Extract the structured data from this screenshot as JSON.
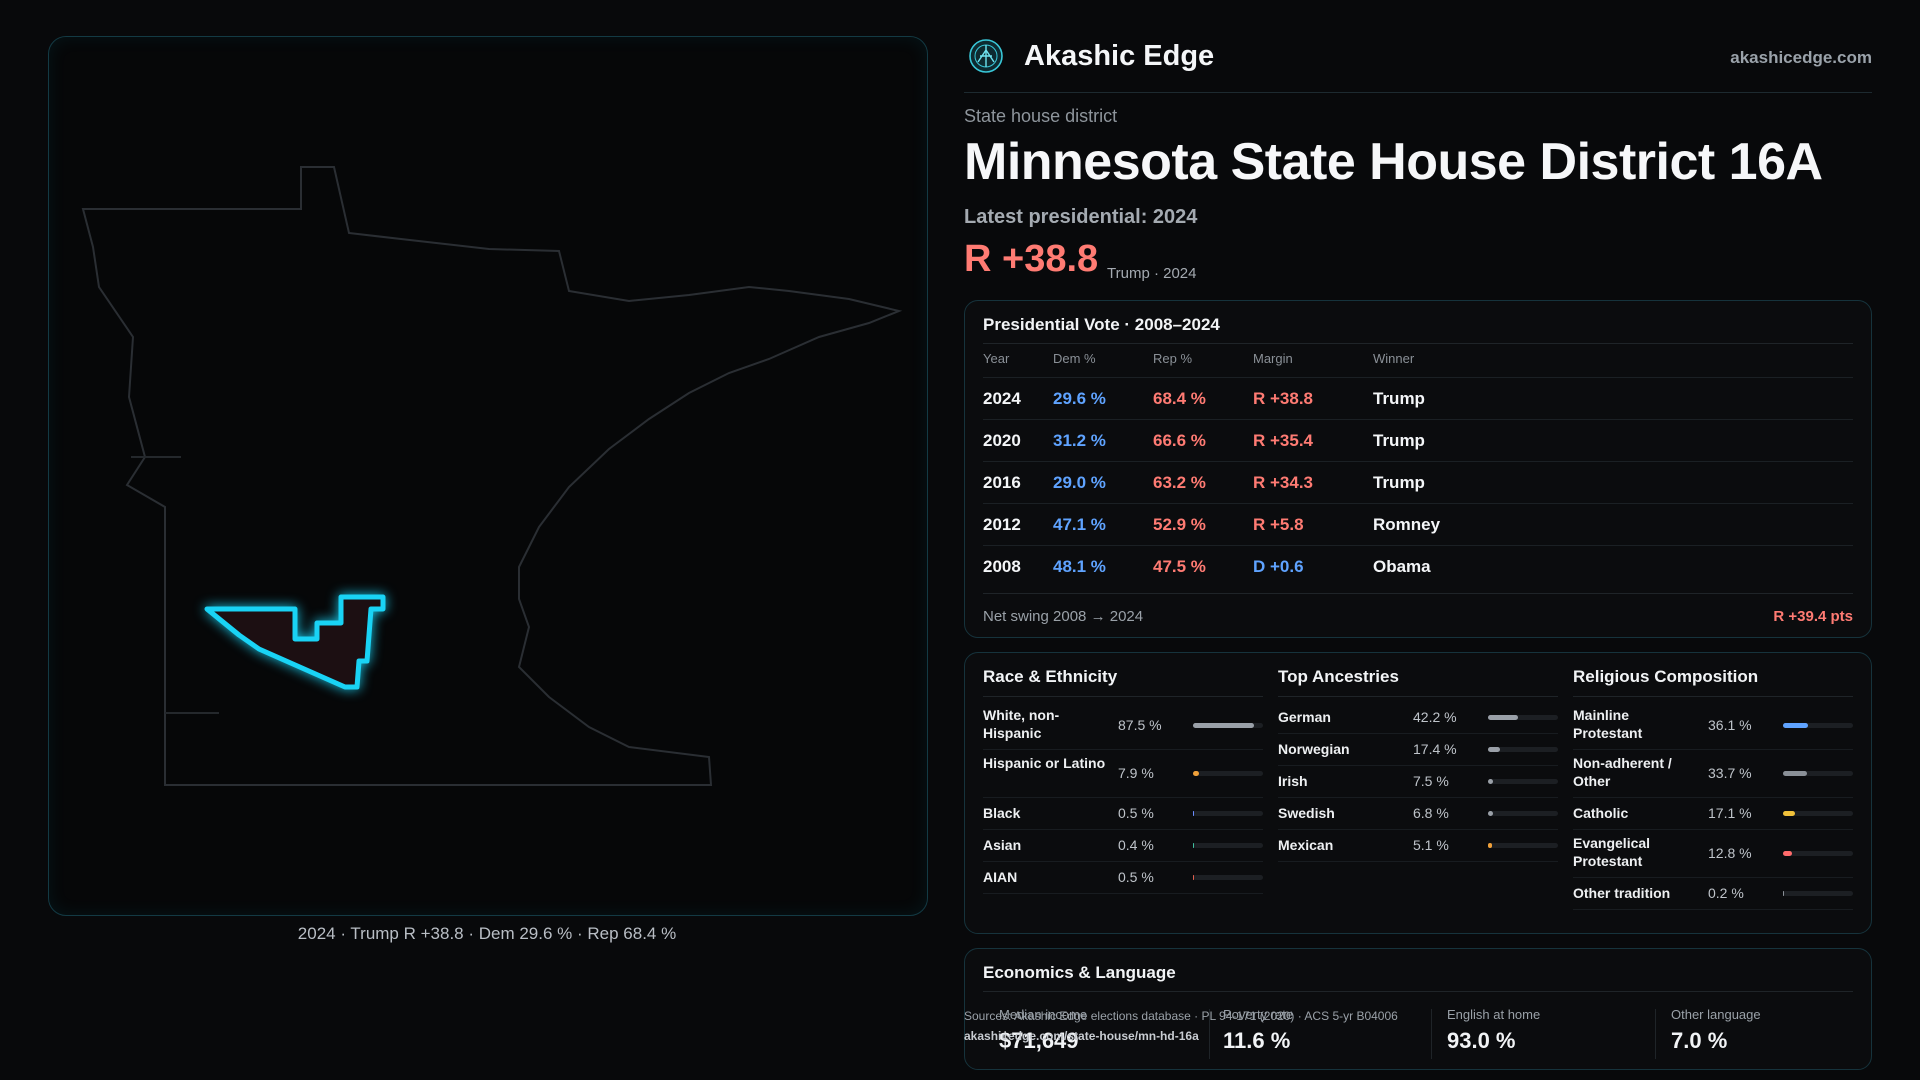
{
  "map": {
    "caption": "2024 · Trump R +38.8 · Dem 29.6 % · Rep 68.4 %",
    "highlight_color": "#19d3f5",
    "outline_color": "#2a2e33"
  },
  "header": {
    "brand": "Akashic Edge",
    "site": "akashicedge.com"
  },
  "district": {
    "kicker": "State house district",
    "title": "Minnesota State House District 16A",
    "latest_label": "Latest presidential: 2024",
    "margin": "R +38.8",
    "margin_sub": "Trump · 2024"
  },
  "presidential": {
    "title": "Presidential Vote · 2008–2024",
    "columns": [
      "Year",
      "Dem %",
      "Rep %",
      "Margin",
      "Winner"
    ],
    "rows": [
      {
        "year": "2024",
        "dem": "29.6 %",
        "rep": "68.4 %",
        "margin": "R +38.8",
        "winner": "Trump",
        "party": "R"
      },
      {
        "year": "2020",
        "dem": "31.2 %",
        "rep": "66.6 %",
        "margin": "R +35.4",
        "winner": "Trump",
        "party": "R"
      },
      {
        "year": "2016",
        "dem": "29.0 %",
        "rep": "63.2 %",
        "margin": "R +34.3",
        "winner": "Trump",
        "party": "R"
      },
      {
        "year": "2012",
        "dem": "47.1 %",
        "rep": "52.9 %",
        "margin": "R +5.8",
        "winner": "Romney",
        "party": "R"
      },
      {
        "year": "2008",
        "dem": "48.1 %",
        "rep": "47.5 %",
        "margin": "D +0.6",
        "winner": "Obama",
        "party": "D"
      }
    ],
    "swing_label": "Net swing 2008 → 2024",
    "swing_value": "R +39.4 pts"
  },
  "race": {
    "title": "Race & Ethnicity",
    "items": [
      {
        "label": "White, non-Hispanic",
        "value": "87.5 %",
        "pct": 87.5,
        "color": "#9aa0a8"
      },
      {
        "label": "Hispanic or Latino",
        "value": "7.9 %",
        "pct": 7.9,
        "color": "#f0a13a"
      },
      {
        "label": "Black",
        "value": "0.5 %",
        "pct": 0.5,
        "color": "#6b8cff"
      },
      {
        "label": "Asian",
        "value": "0.4 %",
        "pct": 0.4,
        "color": "#3fbf9f"
      },
      {
        "label": "AIAN",
        "value": "0.5 %",
        "pct": 0.5,
        "color": "#e0604f"
      }
    ]
  },
  "ancestry": {
    "title": "Top Ancestries",
    "items": [
      {
        "label": "German",
        "value": "42.2 %",
        "pct": 42.2,
        "color": "#9aa0a8"
      },
      {
        "label": "Norwegian",
        "value": "17.4 %",
        "pct": 17.4,
        "color": "#9aa0a8"
      },
      {
        "label": "Irish",
        "value": "7.5 %",
        "pct": 7.5,
        "color": "#9aa0a8"
      },
      {
        "label": "Swedish",
        "value": "6.8 %",
        "pct": 6.8,
        "color": "#9aa0a8"
      },
      {
        "label": "Mexican",
        "value": "5.1 %",
        "pct": 5.1,
        "color": "#f0a13a"
      }
    ]
  },
  "religion": {
    "title": "Religious Composition",
    "items": [
      {
        "label": "Mainline Protestant",
        "value": "36.1 %",
        "pct": 36.1,
        "color": "#5fa3ff"
      },
      {
        "label": "Non-adherent / Other",
        "value": "33.7 %",
        "pct": 33.7,
        "color": "#8a9097"
      },
      {
        "label": "Catholic",
        "value": "17.1 %",
        "pct": 17.1,
        "color": "#f0c13a"
      },
      {
        "label": "Evangelical Protestant",
        "value": "12.8 %",
        "pct": 12.8,
        "color": "#ff6b6b"
      },
      {
        "label": "Other tradition",
        "value": "0.2 %",
        "pct": 0.2,
        "color": "#8a9097"
      }
    ]
  },
  "economics": {
    "title": "Economics & Language",
    "items": [
      {
        "label": "Median income",
        "value": "$71,649"
      },
      {
        "label": "Poverty rate",
        "value": "11.6 %"
      },
      {
        "label": "English at home",
        "value": "93.0 %"
      },
      {
        "label": "Other language",
        "value": "7.0 %"
      }
    ]
  },
  "source": {
    "line1": "Sources: Akashic Edge elections database · PL 94-171 (2020) · ACS 5-yr B04006",
    "line2": "akashicedge.com/state-house/mn-hd-16a"
  }
}
